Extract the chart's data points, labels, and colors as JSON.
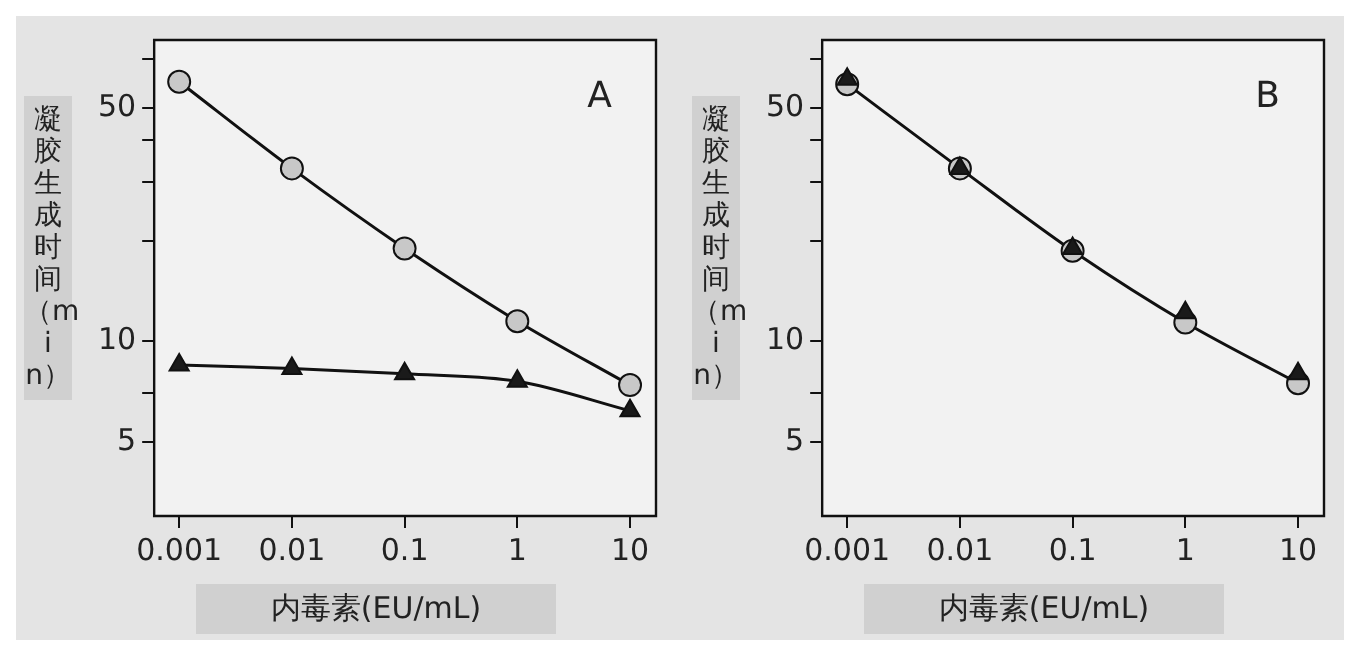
{
  "chart_data": [
    {
      "type": "line",
      "log": "xy",
      "grid": false,
      "legend": false,
      "xlabel": "内毒素(EU/mL)",
      "ylabel": "凝胶生成时间（min）",
      "annotations": [
        "A"
      ],
      "x": [
        0.001,
        0.01,
        0.1,
        1,
        10
      ],
      "xlim": [
        0.0006,
        17
      ],
      "xticks": [
        0.001,
        0.01,
        0.1,
        1,
        10
      ],
      "ylim": [
        3,
        80
      ],
      "yticks": [
        5,
        {
          "value": 7,
          "label": null
        },
        10,
        {
          "value": 20,
          "label": null
        },
        {
          "value": 30,
          "label": null
        },
        {
          "value": 40,
          "label": null
        },
        50,
        {
          "value": 70,
          "label": null
        }
      ],
      "series": [
        {
          "color": "#c8c8c8",
          "marker": "circle",
          "values": [
            60,
            33,
            19,
            11.5,
            7.4
          ]
        },
        {
          "color": "#1a1a1a",
          "marker": "triangle",
          "values": [
            8.5,
            8.3,
            8.0,
            7.6,
            6.2
          ]
        }
      ]
    },
    {
      "type": "line",
      "log": "xy",
      "grid": false,
      "legend": false,
      "xlabel": "内毒素(EU/mL)",
      "ylabel": "凝胶生成时间（min）",
      "annotations": [
        "B"
      ],
      "x": [
        0.001,
        0.01,
        0.1,
        1,
        10
      ],
      "xlim": [
        0.0006,
        17
      ],
      "xticks": [
        0.001,
        0.01,
        0.1,
        1,
        10
      ],
      "ylim": [
        3,
        80
      ],
      "yticks": [
        5,
        {
          "value": 7,
          "label": null
        },
        10,
        {
          "value": 20,
          "label": null
        },
        {
          "value": 30,
          "label": null
        },
        {
          "value": 40,
          "label": null
        },
        50,
        {
          "value": 70,
          "label": null
        }
      ],
      "series": [
        {
          "type": "scatter",
          "color": "#1a1a1a",
          "marker": "triangle",
          "values": [
            61,
            33,
            19,
            12.2,
            8.0
          ]
        },
        {
          "color": "#c8c8c8",
          "marker": "circle",
          "values": [
            59,
            33,
            18.7,
            11.4,
            7.5
          ]
        }
      ]
    }
  ]
}
